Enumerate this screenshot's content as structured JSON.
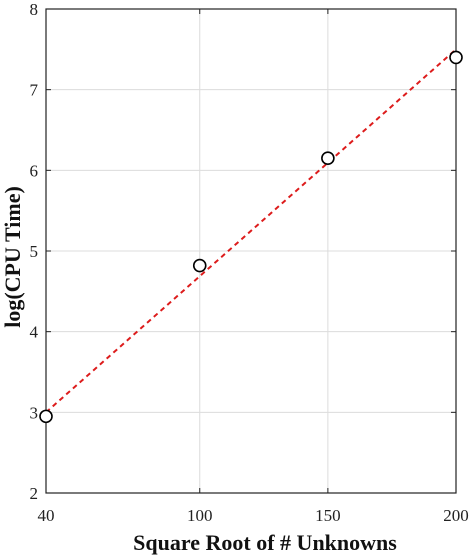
{
  "chart_data": {
    "type": "scatter",
    "title": "",
    "xlabel": "Square Root of # Unknowns",
    "ylabel": "log(CPU Time)",
    "xlim": [
      40,
      200
    ],
    "ylim": [
      2,
      8
    ],
    "xticks": [
      40,
      100,
      150,
      200
    ],
    "yticks": [
      2,
      3,
      4,
      5,
      6,
      7,
      8
    ],
    "grid": true,
    "series": [
      {
        "kind": "markers",
        "marker": "open-circle",
        "color": "#000000",
        "x": [
          40,
          100,
          150,
          200
        ],
        "y": [
          2.95,
          4.82,
          6.15,
          7.4
        ]
      },
      {
        "kind": "fit-line",
        "style": "dashed",
        "color": "#dd1c1c",
        "x": [
          40,
          200
        ],
        "y": [
          3.0,
          7.5
        ]
      }
    ]
  }
}
